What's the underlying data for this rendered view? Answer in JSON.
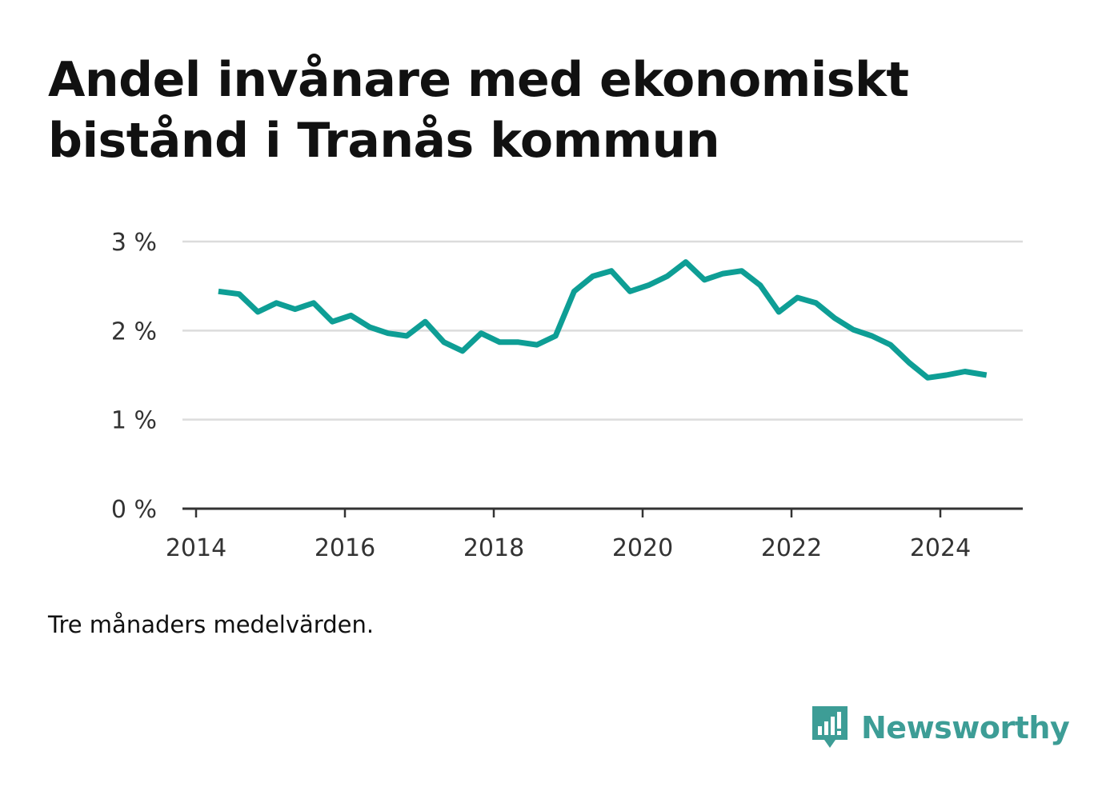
{
  "title": "Andel invånare med ekonomiskt bistånd i Tranås kommun",
  "footnote": "Tre månaders medelvärden.",
  "brand": {
    "name": "Newsworthy",
    "color": "#3d9d96"
  },
  "chart_data": {
    "type": "line",
    "title": "Andel invånare med ekonomiskt bistånd i Tranås kommun",
    "xlabel": "",
    "ylabel": "",
    "xlim": [
      2014,
      2025.1
    ],
    "ylim": [
      0,
      3
    ],
    "x_ticks": [
      2014,
      2016,
      2018,
      2020,
      2022,
      2024
    ],
    "x_tick_labels": [
      "2014",
      "2016",
      "2018",
      "2020",
      "2022",
      "2024"
    ],
    "y_ticks": [
      0,
      1,
      2,
      3
    ],
    "y_tick_labels": [
      "0 %",
      "1 %",
      "2 %",
      "3 %"
    ],
    "grid": true,
    "line_color": "#0e9e95",
    "series": [
      {
        "x": [
          2014.3,
          2014.58,
          2014.83,
          2015.08,
          2015.33,
          2015.58,
          2015.83,
          2016.08,
          2016.33,
          2016.58,
          2016.83,
          2017.08,
          2017.33,
          2017.58,
          2017.83,
          2018.08,
          2018.33,
          2018.58,
          2018.83,
          2019.08,
          2019.33,
          2019.58,
          2019.83,
          2020.08,
          2020.33,
          2020.58,
          2020.83,
          2021.08,
          2021.33,
          2021.58,
          2021.83,
          2022.08,
          2022.33,
          2022.58,
          2022.83,
          2023.08,
          2023.33,
          2023.58,
          2023.83,
          2024.08,
          2024.33,
          2024.62
        ],
        "values": [
          2.44,
          2.41,
          2.21,
          2.31,
          2.24,
          2.31,
          2.1,
          2.17,
          2.04,
          1.97,
          1.94,
          2.1,
          1.87,
          1.77,
          1.97,
          1.87,
          1.87,
          1.84,
          1.94,
          2.44,
          2.61,
          2.67,
          2.44,
          2.51,
          2.61,
          2.77,
          2.57,
          2.64,
          2.67,
          2.51,
          2.21,
          2.37,
          2.31,
          2.14,
          2.01,
          1.94,
          1.84,
          1.64,
          1.47,
          1.5,
          1.54,
          1.5
        ]
      }
    ]
  }
}
